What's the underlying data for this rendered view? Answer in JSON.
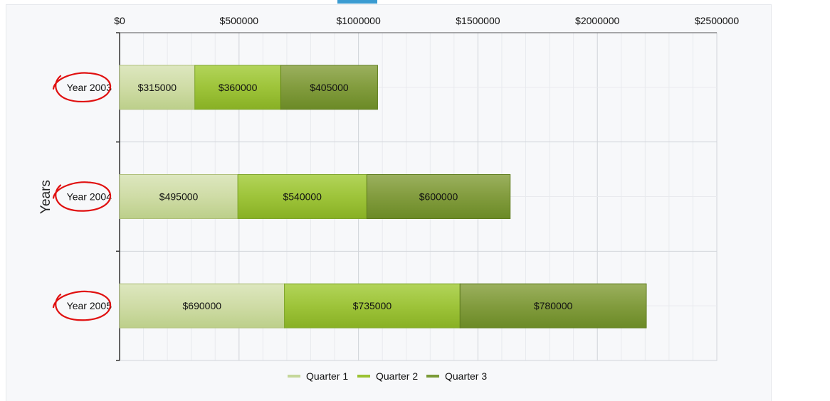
{
  "chart_data": {
    "type": "bar",
    "orientation": "horizontal",
    "stacked": true,
    "title": "",
    "xlabel": "",
    "ylabel": "Years",
    "xlim": [
      0,
      2500000
    ],
    "x_ticks": [
      0,
      500000,
      1000000,
      1500000,
      2000000,
      2500000
    ],
    "x_tick_labels": [
      "$0",
      "$500000",
      "$1000000",
      "$1500000",
      "$2000000",
      "$2500000"
    ],
    "x_axis_position": "top",
    "grid": true,
    "legend_position": "bottom",
    "categories": [
      "Year 2003",
      "Year 2004",
      "Year 2005"
    ],
    "series": [
      {
        "name": "Quarter 1",
        "color": "#c5d79a",
        "values": [
          315000,
          495000,
          690000
        ],
        "labels": [
          "$315000",
          "$495000",
          "$690000"
        ]
      },
      {
        "name": "Quarter 2",
        "color": "#9bc232",
        "values": [
          360000,
          540000,
          735000
        ],
        "labels": [
          "$360000",
          "$540000",
          "$735000"
        ]
      },
      {
        "name": "Quarter 3",
        "color": "#7a9a36",
        "values": [
          405000,
          600000,
          780000
        ],
        "labels": [
          "$405000",
          "$600000",
          "$780000"
        ]
      }
    ],
    "annotations": {
      "type": "hand-drawn-circle",
      "color": "#e01010",
      "targets": [
        "Year 2003",
        "Year 2004",
        "Year 2005"
      ]
    }
  }
}
